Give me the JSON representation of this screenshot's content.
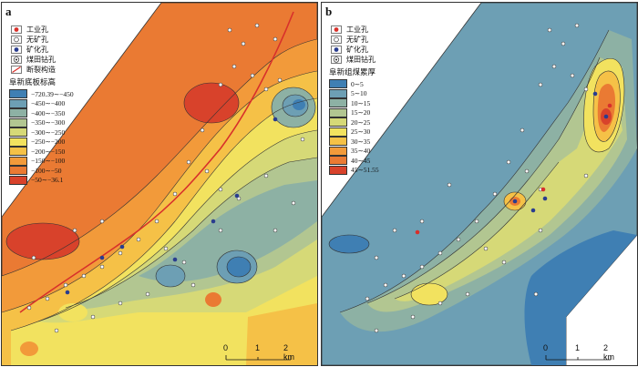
{
  "panels": [
    {
      "label": "a",
      "legend_symbols": [
        {
          "label": "工业孔",
          "icon": "red-dot-circle-icon"
        },
        {
          "label": "无矿孔",
          "icon": "open-dot-circle-icon"
        },
        {
          "label": "矿化孔",
          "icon": "blue-dot-circle-icon"
        },
        {
          "label": "煤田钻孔",
          "icon": "target-circle-icon"
        },
        {
          "label": "断裂构造",
          "icon": "red-line-icon"
        }
      ],
      "legend_title": "阜新底板标高",
      "classes": [
        {
          "label": "−720.39∼−450",
          "color": "#3f7fb3"
        },
        {
          "label": "−450∼−400",
          "color": "#6d9fb4"
        },
        {
          "label": "−400∼−350",
          "color": "#8db1a4"
        },
        {
          "label": "−350∼−300",
          "color": "#b2c691"
        },
        {
          "label": "−300∼−250",
          "color": "#d6d977"
        },
        {
          "label": "−250∼−200",
          "color": "#f2e25f"
        },
        {
          "label": "−200∼−150",
          "color": "#f5c147"
        },
        {
          "label": "−150∼−100",
          "color": "#f29a3a"
        },
        {
          "label": "−100∼−50",
          "color": "#ea7a33"
        },
        {
          "label": "−50∼−36.1",
          "color": "#d8422b"
        }
      ],
      "scale": {
        "ticks": [
          "0",
          "1",
          "2 km"
        ]
      }
    },
    {
      "label": "b",
      "legend_symbols": [
        {
          "label": "工业孔",
          "icon": "red-dot-circle-icon"
        },
        {
          "label": "无矿孔",
          "icon": "open-dot-circle-icon"
        },
        {
          "label": "矿化孔",
          "icon": "blue-dot-circle-icon"
        },
        {
          "label": "煤田钻孔",
          "icon": "target-circle-icon"
        }
      ],
      "legend_title": "阜新组煤累厚",
      "classes": [
        {
          "label": "0∼5",
          "color": "#3f7fb3"
        },
        {
          "label": "5∼10",
          "color": "#6d9fb4"
        },
        {
          "label": "10∼15",
          "color": "#8db1a4"
        },
        {
          "label": "15∼20",
          "color": "#b2c691"
        },
        {
          "label": "20∼25",
          "color": "#d6d977"
        },
        {
          "label": "25∼30",
          "color": "#f2e25f"
        },
        {
          "label": "30∼35",
          "color": "#f5c147"
        },
        {
          "label": "35∼40",
          "color": "#f29a3a"
        },
        {
          "label": "40∼45",
          "color": "#ea7a33"
        },
        {
          "label": "45∼51.55",
          "color": "#d8422b"
        }
      ],
      "scale": {
        "ticks": [
          "0",
          "1",
          "2 km"
        ]
      }
    }
  ]
}
